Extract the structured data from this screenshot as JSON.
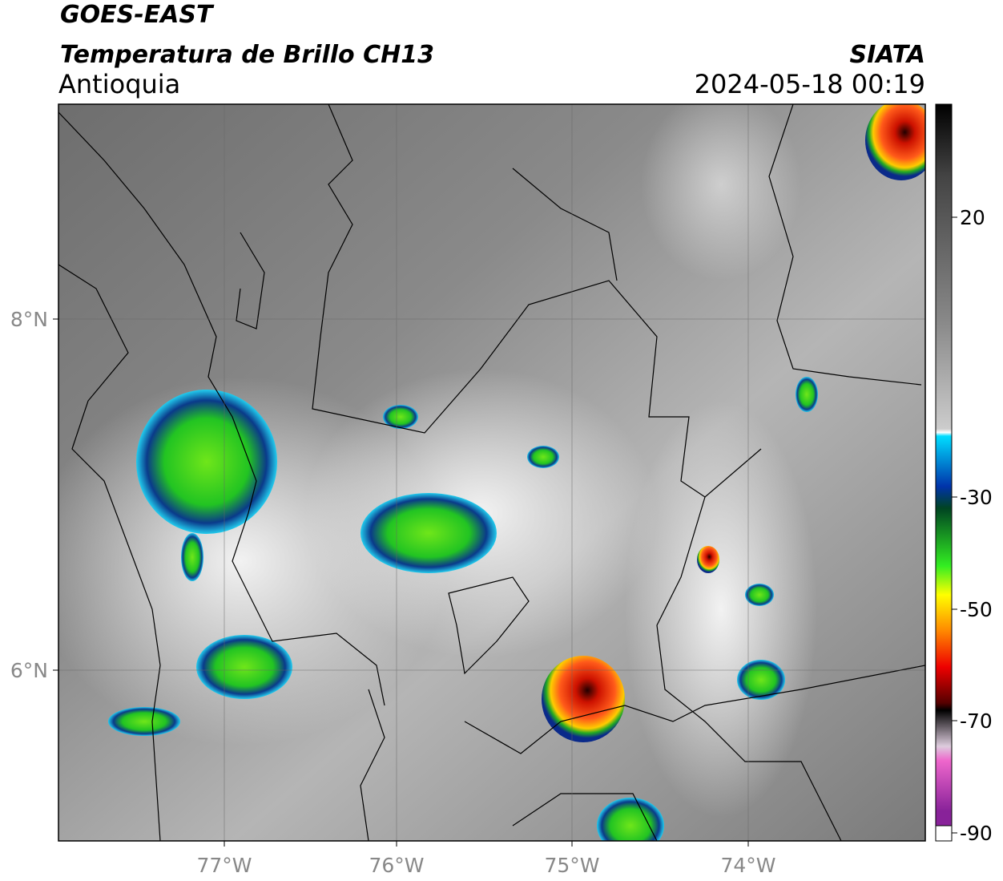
{
  "header": {
    "line1": "GOES-EAST",
    "line2": "Temperatura de Brillo CH13",
    "region": "Antioquia",
    "agency": "SIATA",
    "datetime": "2024-05-18 00:19"
  },
  "map": {
    "lat_labels": [
      "8°N",
      "6°N"
    ],
    "lon_labels": [
      "77°W",
      "76°W",
      "75°W",
      "74°W"
    ]
  },
  "colorbar": {
    "tick_labels": [
      "20",
      "-30",
      "-50",
      "-70",
      "-90"
    ]
  }
}
